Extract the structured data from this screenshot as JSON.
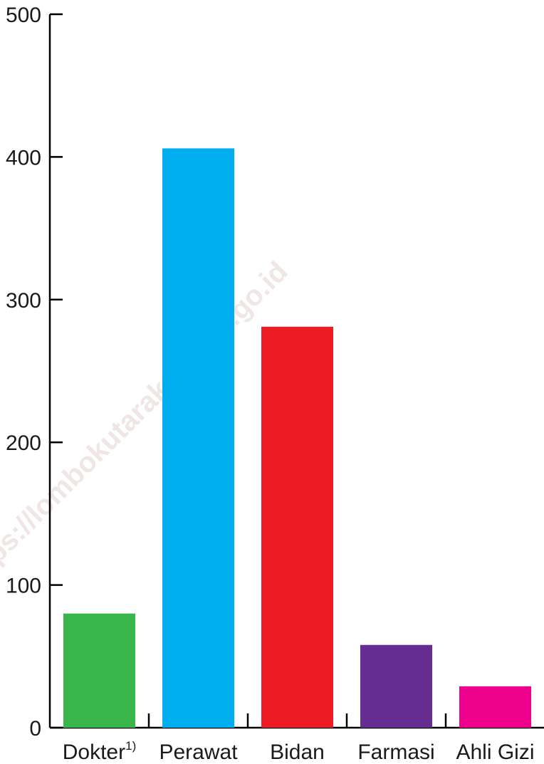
{
  "chart_data": {
    "type": "bar",
    "categories": [
      "Dokter",
      "Perawat",
      "Bidan",
      "Farmasi",
      "Ahli Gizi"
    ],
    "category_superscripts": [
      "1)",
      "",
      "",
      "",
      ""
    ],
    "values": [
      80,
      406,
      281,
      58,
      29
    ],
    "colors": [
      "#39b54a",
      "#00aeef",
      "#ed1c24",
      "#662d91",
      "#ec008c"
    ],
    "ylim": [
      0,
      500
    ],
    "yticks": [
      0,
      100,
      200,
      300,
      400,
      500
    ],
    "grid": false,
    "title": "",
    "xlabel": "",
    "ylabel": ""
  },
  "watermark": "https://lombokutarakab.bps.go.id"
}
